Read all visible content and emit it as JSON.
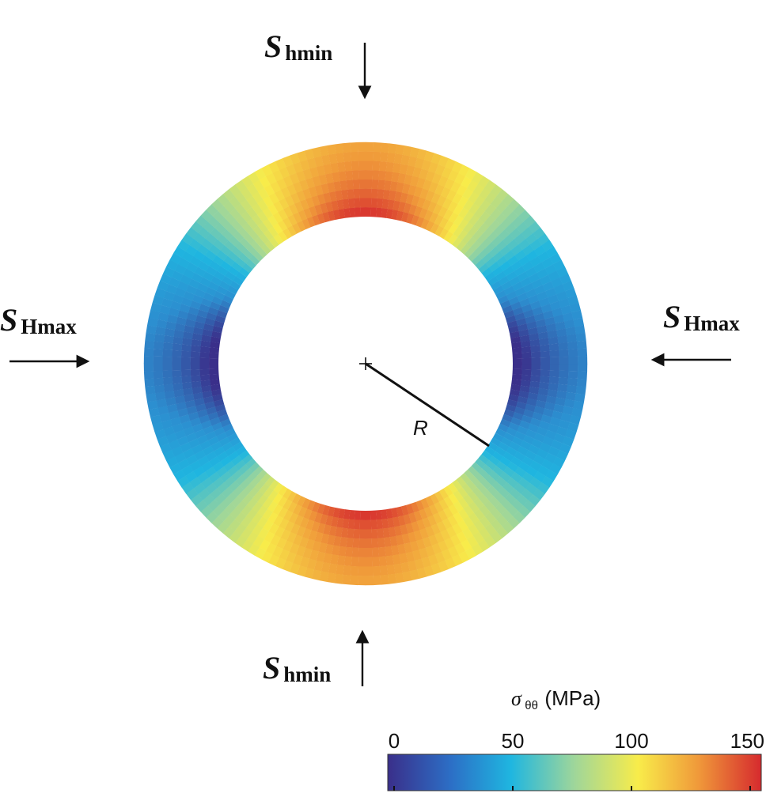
{
  "labels": {
    "top": {
      "main": "S",
      "sub": "hmin"
    },
    "bottom": {
      "main": "S",
      "sub": "hmin"
    },
    "left": {
      "main": "S",
      "sub": "Hmax"
    },
    "right": {
      "main": "S",
      "sub": "Hmax"
    },
    "radius": "R"
  },
  "colorbar": {
    "title_symbol": "σ",
    "title_sub": "θθ",
    "title_unit": "(MPa)",
    "ticks": [
      {
        "value": 0,
        "label": "0"
      },
      {
        "value": 50,
        "label": "50"
      },
      {
        "value": 100,
        "label": "100"
      },
      {
        "value": 150,
        "label": "150"
      }
    ],
    "range": [
      0,
      150
    ]
  },
  "stress_field": {
    "max_at": "top-bottom",
    "min_at": "left-right",
    "max_value": 150,
    "min_value": 0
  },
  "colors": {
    "c0": "#3a2f8a",
    "c25": "#2c8fd0",
    "c50": "#1fb6e0",
    "c75": "#9fd69a",
    "c100": "#f8ec4a",
    "c125": "#f09a3a",
    "c150": "#d62a2e"
  }
}
